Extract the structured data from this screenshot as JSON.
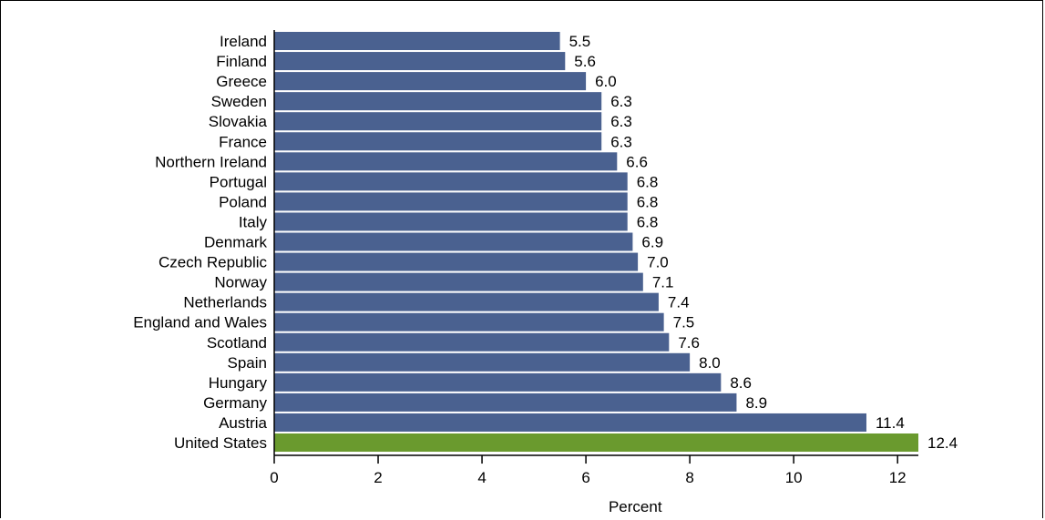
{
  "chart_data": {
    "type": "bar",
    "orientation": "horizontal",
    "title": "",
    "xlabel": "Percent",
    "ylabel": "",
    "xlim": [
      0,
      12.4
    ],
    "xticks": [
      0,
      2,
      4,
      6,
      8,
      10,
      12
    ],
    "grid": false,
    "legend": "none",
    "categories": [
      "Ireland",
      "Finland",
      "Greece",
      "Sweden",
      "Slovakia",
      "France",
      "Northern Ireland",
      "Portugal",
      "Poland",
      "Italy",
      "Denmark",
      "Czech Republic",
      "Norway",
      "Netherlands",
      "England and Wales",
      "Scotland",
      "Spain",
      "Hungary",
      "Germany",
      "Austria",
      "United States"
    ],
    "values": [
      5.5,
      5.6,
      6.0,
      6.3,
      6.3,
      6.3,
      6.6,
      6.8,
      6.8,
      6.8,
      6.9,
      7.0,
      7.1,
      7.4,
      7.5,
      7.6,
      8.0,
      8.6,
      8.9,
      11.4,
      12.4
    ],
    "value_labels": [
      "5.5",
      "5.6",
      "6.0",
      "6.3",
      "6.3",
      "6.3",
      "6.6",
      "6.8",
      "6.8",
      "6.8",
      "6.9",
      "7.0",
      "7.1",
      "7.4",
      "7.5",
      "7.6",
      "8.0",
      "8.6",
      "8.9",
      "11.4",
      "12.4"
    ],
    "highlight_category": "United States",
    "colors": {
      "bar": "#4a6190",
      "highlight": "#6a9a2e",
      "axis": "#000000",
      "text": "#000000"
    }
  }
}
